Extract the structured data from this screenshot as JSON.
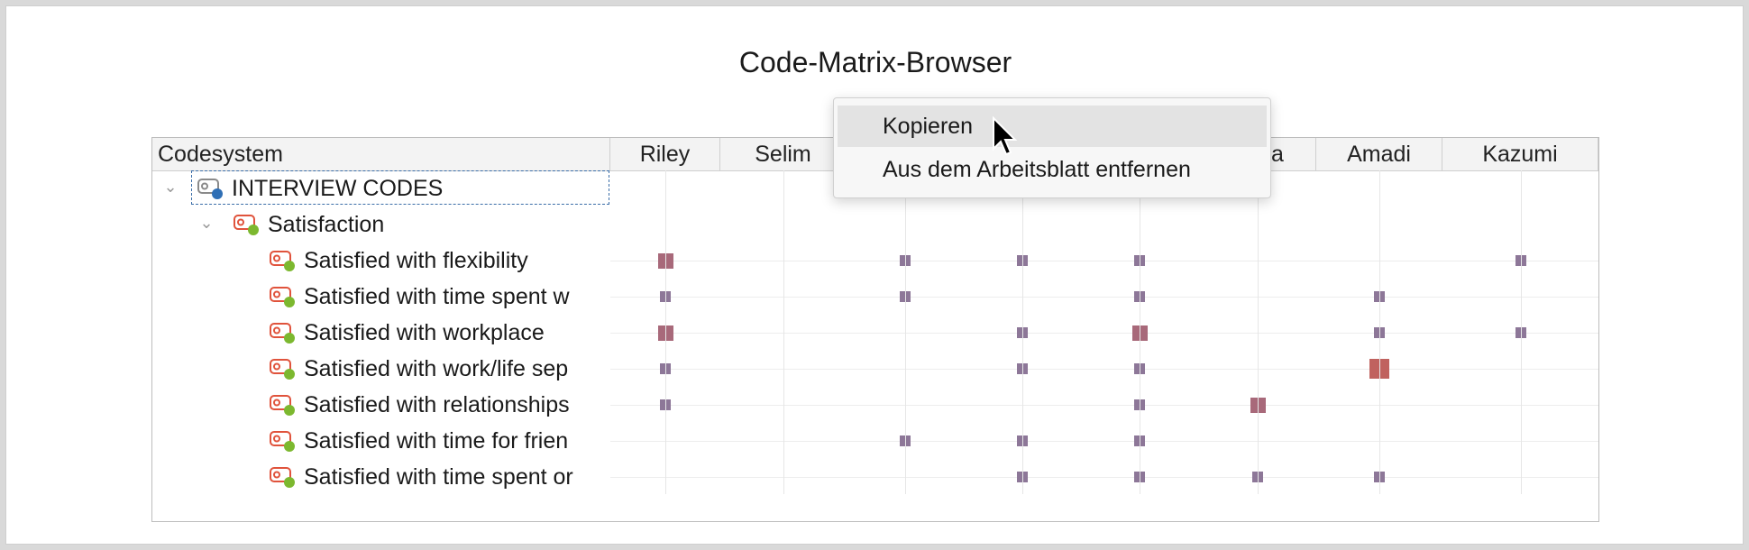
{
  "window": {
    "title": "Code-Matrix-Browser"
  },
  "table": {
    "header_first": "Codesystem",
    "columns": [
      "Riley",
      "Selim",
      "",
      "",
      "",
      "Dana",
      "Amadi",
      "Kazumi"
    ],
    "root": {
      "label": "INTERVIEW CODES"
    },
    "group": {
      "label": "Satisfaction"
    },
    "rows": [
      {
        "label": "Satisfied with flexibility",
        "cells": [
          2,
          0,
          1,
          1,
          1,
          0,
          0,
          1
        ]
      },
      {
        "label": "Satisfied with time spent w",
        "cells": [
          1,
          0,
          1,
          0,
          1,
          0,
          1,
          0
        ]
      },
      {
        "label": "Satisfied with workplace",
        "cells": [
          2,
          0,
          0,
          1,
          2,
          0,
          1,
          1
        ]
      },
      {
        "label": "Satisfied with work/life sep",
        "cells": [
          1,
          0,
          0,
          1,
          1,
          0,
          3,
          0
        ]
      },
      {
        "label": "Satisfied with relationships",
        "cells": [
          1,
          0,
          0,
          0,
          1,
          2,
          0,
          0
        ]
      },
      {
        "label": "Satisfied with time for frien",
        "cells": [
          0,
          0,
          1,
          1,
          1,
          0,
          0,
          0
        ]
      },
      {
        "label": "Satisfied with time spent or",
        "cells": [
          0,
          0,
          0,
          1,
          1,
          1,
          1,
          0
        ]
      }
    ]
  },
  "context_menu": {
    "items": [
      {
        "label": "Kopieren",
        "highlighted": true
      },
      {
        "label": "Aus dem Arbeitsblatt entfernen",
        "highlighted": false
      }
    ]
  },
  "colors": {
    "small_square": "#8d7798",
    "medium_square": "#a8697a",
    "large_square": "#c0625f",
    "code_icon": "#e0533c",
    "dot_green": "#7cb82f",
    "dot_blue": "#2f6fb5"
  }
}
